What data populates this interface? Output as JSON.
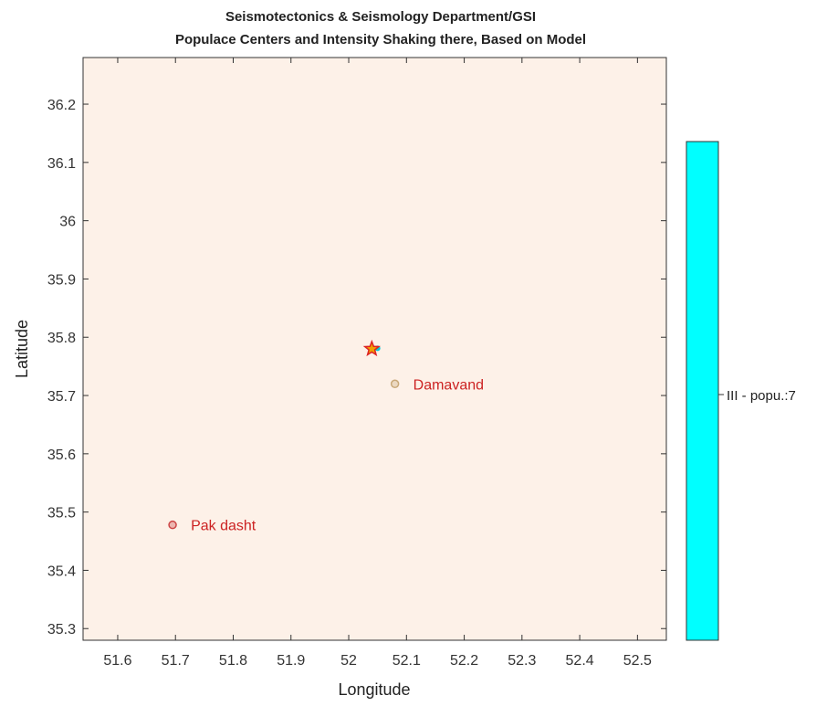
{
  "chart_data": {
    "type": "scatter",
    "title_lines": [
      "Seismotectonics & Seismology Department/GSI",
      "Populace Centers and Intensity Shaking there, Based on Model"
    ],
    "xlabel": "Longitude",
    "ylabel": "Latitude",
    "xlim": [
      51.54,
      52.55
    ],
    "ylim": [
      35.28,
      36.28
    ],
    "x_ticks": [
      51.6,
      51.7,
      51.8,
      51.9,
      52,
      52.1,
      52.2,
      52.3,
      52.4,
      52.5
    ],
    "x_tick_labels": [
      "51.6",
      "51.7",
      "51.8",
      "51.9",
      "52",
      "52.1",
      "52.2",
      "52.3",
      "52.4",
      "52.5"
    ],
    "y_ticks": [
      35.3,
      35.4,
      35.5,
      35.6,
      35.7,
      35.8,
      35.9,
      36,
      36.1,
      36.2
    ],
    "y_tick_labels": [
      "35.3",
      "35.4",
      "35.5",
      "35.6",
      "35.7",
      "35.8",
      "35.9",
      "36",
      "36.1",
      "36.2"
    ],
    "grid": false,
    "plot_background": "#fdf1e8",
    "places": [
      {
        "label": "Pak dasht",
        "x": 51.695,
        "y": 35.478,
        "marker_color": "#cc4444",
        "label_color": "#cc2222"
      },
      {
        "label": "Damavand",
        "x": 52.08,
        "y": 35.72,
        "marker_color": "#c8a878",
        "label_color": "#cc2222"
      }
    ],
    "epicenter": {
      "x": 52.04,
      "y": 35.78,
      "marker": "star",
      "edge_color": "#dd2222",
      "fill_color": "#f0a000"
    },
    "epicenter_marker": {
      "x": 52.05,
      "y": 35.781,
      "color": "#00c8d8"
    },
    "colorbar": {
      "color": "#00ffff",
      "labels": [
        "III - popu.:7"
      ]
    }
  }
}
